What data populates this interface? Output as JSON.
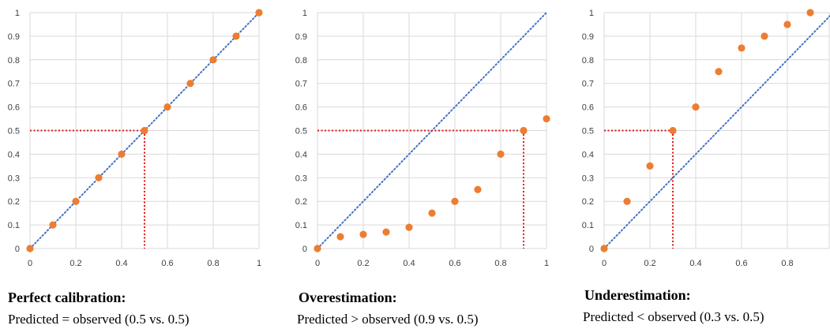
{
  "chart_data": [
    {
      "type": "scatter",
      "caption_title": "Perfect calibration:",
      "caption_subtitle": "Predicted = observed (0.5 vs. 0.5)",
      "x": [
        0,
        0.1,
        0.2,
        0.3,
        0.4,
        0.5,
        0.6,
        0.7,
        0.8,
        0.9,
        1.0
      ],
      "y": [
        0,
        0.1,
        0.2,
        0.3,
        0.4,
        0.5,
        0.6,
        0.7,
        0.8,
        0.9,
        1.0
      ],
      "xlim": [
        0,
        1
      ],
      "ylim": [
        0,
        1
      ],
      "xticks": [
        "0",
        "0.2",
        "0.4",
        "0.6",
        "0.8",
        "1"
      ],
      "yticks": [
        "0",
        "0.1",
        "0.2",
        "0.3",
        "0.4",
        "0.5",
        "0.6",
        "0.7",
        "0.8",
        "0.9",
        "1"
      ],
      "grid": true,
      "reference_line": "diagonal",
      "highlight": {
        "x": 0.5,
        "y": 0.5
      }
    },
    {
      "type": "scatter",
      "caption_title": "Overestimation:",
      "caption_subtitle": "Predicted > observed (0.9 vs. 0.5)",
      "x": [
        0,
        0.1,
        0.2,
        0.3,
        0.4,
        0.5,
        0.6,
        0.7,
        0.8,
        0.9,
        1.0
      ],
      "y": [
        0,
        0.05,
        0.06,
        0.07,
        0.09,
        0.15,
        0.2,
        0.25,
        0.4,
        0.5,
        0.55
      ],
      "xlim": [
        0,
        1
      ],
      "ylim": [
        0,
        1
      ],
      "xticks": [
        "0",
        "0.2",
        "0.4",
        "0.6",
        "0.8",
        "1"
      ],
      "yticks": [
        "0",
        "0.1",
        "0.2",
        "0.3",
        "0.4",
        "0.5",
        "0.6",
        "0.7",
        "0.8",
        "0.9",
        "1"
      ],
      "grid": true,
      "reference_line": "diagonal",
      "highlight": {
        "x": 0.9,
        "y": 0.5
      }
    },
    {
      "type": "scatter",
      "caption_title": "Underestimation:",
      "caption_subtitle": "Predicted < observed (0.3 vs. 0.5)",
      "x": [
        0,
        0.1,
        0.2,
        0.3,
        0.4,
        0.5,
        0.6,
        0.7,
        0.8,
        0.9
      ],
      "y": [
        0,
        0.2,
        0.35,
        0.5,
        0.6,
        0.75,
        0.85,
        0.9,
        0.95,
        1.0
      ],
      "xlim": [
        0,
        1
      ],
      "ylim": [
        0,
        1
      ],
      "xticks": [
        "0",
        "0.2",
        "0.4",
        "0.6",
        "0.8",
        "1"
      ],
      "yticks": [
        "0",
        "0.1",
        "0.2",
        "0.3",
        "0.4",
        "0.5",
        "0.6",
        "0.7",
        "0.8",
        "0.9",
        "1"
      ],
      "grid": true,
      "reference_line": "diagonal",
      "highlight": {
        "x": 0.3,
        "y": 0.5
      }
    }
  ],
  "colors": {
    "points": "#ED7D31",
    "reference_line": "#4472C4",
    "highlight_line": "#E0191A",
    "grid": "#D9D9D9"
  }
}
